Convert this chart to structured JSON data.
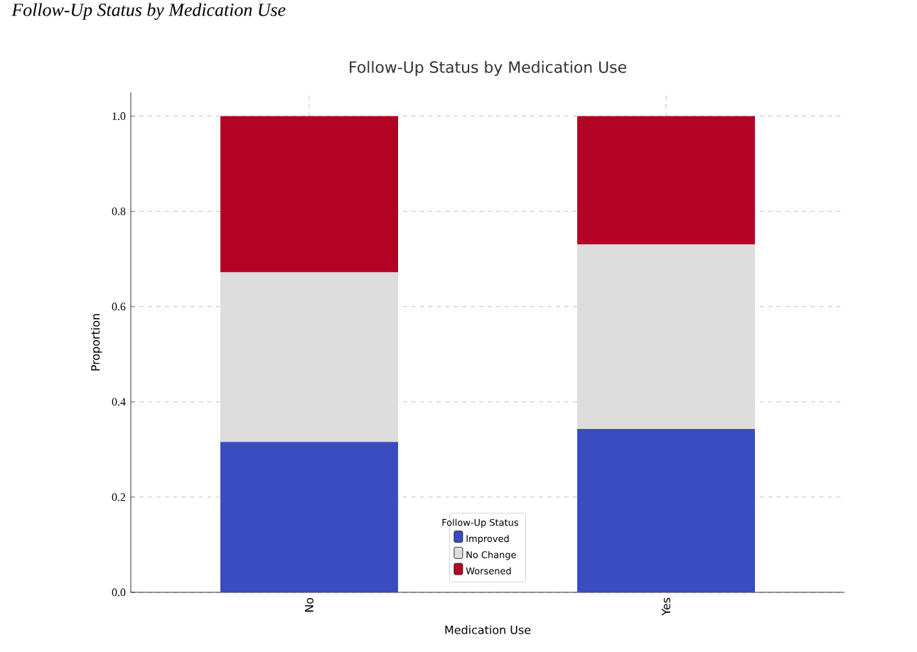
{
  "chart_data": {
    "type": "bar",
    "title": "Follow-Up Status by Medication Use",
    "xlabel": "Medication Use",
    "ylabel": "Proportion",
    "legend_title": "Follow-Up Status",
    "annotations": [
      "Follow-Up Status by Medication Use"
    ],
    "categories": [
      "No",
      "Yes"
    ],
    "stacked": true,
    "series": [
      {
        "name": "Improved",
        "color": "#3b4cc0",
        "values": [
          0.316,
          0.343
        ]
      },
      {
        "name": "No Change",
        "color": "#dddddd",
        "values": [
          0.356,
          0.388
        ]
      },
      {
        "name": "Worsened",
        "color": "#b40426",
        "values": [
          0.328,
          0.269
        ]
      }
    ],
    "ylim": [
      0,
      1.05
    ],
    "yticks": [
      {
        "value": 0,
        "label": "0.0"
      },
      0.2,
      0.4,
      0.6,
      0.8,
      {
        "value": 1,
        "label": "1.0"
      }
    ],
    "grid": true,
    "legend": "bottom"
  }
}
